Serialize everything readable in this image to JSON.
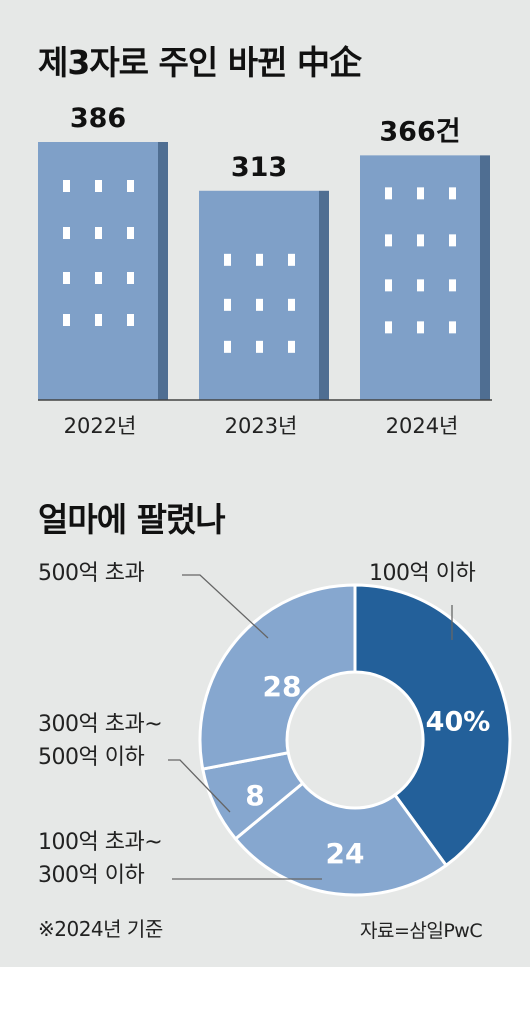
{
  "colors": {
    "background": "#e6e8e7",
    "building_front": "#7fa0c8",
    "building_side": "#4f6e92",
    "window": "#ffffff",
    "pie_main": "#23609a",
    "pie_other": "#86a7cf",
    "pie_separator": "#ffffff",
    "leader_line": "#666666"
  },
  "chart_data": [
    {
      "type": "bar",
      "title": "제3자로 주인 바뀐 中企",
      "categories": [
        "2022년",
        "2023년",
        "2024년"
      ],
      "values": [
        386,
        313,
        366
      ],
      "value_labels": [
        "386",
        "313",
        "366건"
      ],
      "ylim": [
        0,
        400
      ],
      "grid": false,
      "legend": "none"
    },
    {
      "type": "pie",
      "title": "얼마에 팔렸나",
      "donut": true,
      "slices": [
        {
          "label": "100억 이하",
          "value": 40,
          "display": "40%"
        },
        {
          "label": "100억 초과~ 300억 이하",
          "label_lines": [
            "100억 초과~",
            "300억 이하"
          ],
          "value": 24,
          "display": "24"
        },
        {
          "label": "300억 초과~ 500억 이하",
          "label_lines": [
            "300억 초과~",
            "500억 이하"
          ],
          "value": 8,
          "display": "8"
        },
        {
          "label": "500억 초과",
          "value": 28,
          "display": "28"
        }
      ],
      "legend": "none"
    }
  ],
  "footnote": "※2024년 기준",
  "source": "자료=삼일PwC"
}
